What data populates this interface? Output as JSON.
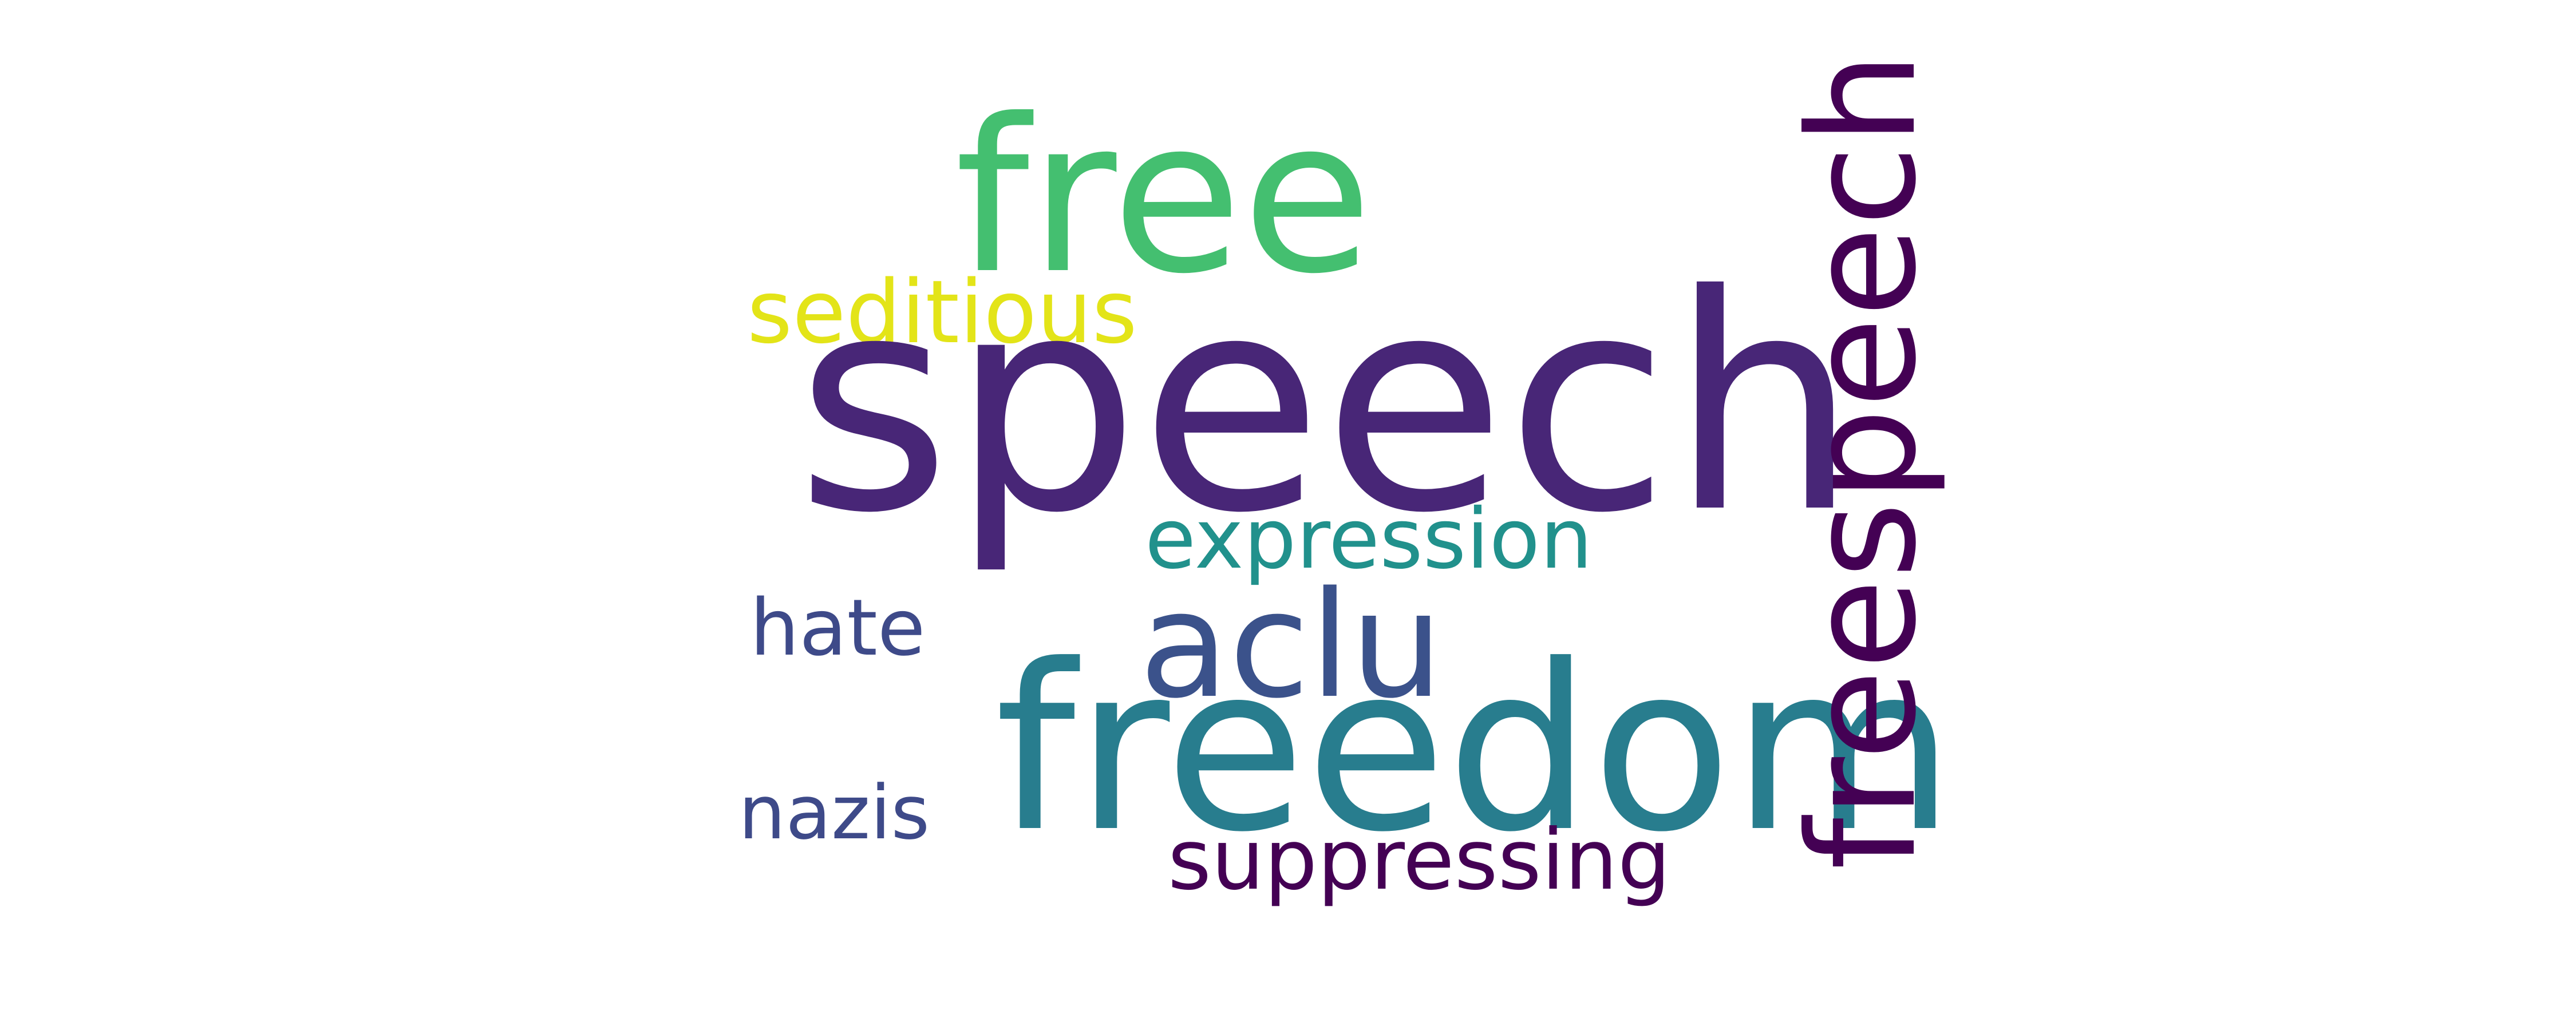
{
  "cloud": {
    "background": "#ffffff",
    "words": {
      "speech": {
        "text": "speech",
        "color": "#482677"
      },
      "free": {
        "text": "free",
        "color": "#44bf70"
      },
      "freedom": {
        "text": "freedom",
        "color": "#287d8e"
      },
      "freespeech": {
        "text": "freespeech",
        "color": "#440154",
        "orientation": "vertical"
      },
      "aclu": {
        "text": "aclu",
        "color": "#3b528b"
      },
      "seditious": {
        "text": "seditious",
        "color": "#e3e418"
      },
      "expression": {
        "text": "expression",
        "color": "#21918c"
      },
      "suppressing": {
        "text": "suppressing",
        "color": "#440154"
      },
      "hate": {
        "text": "hate",
        "color": "#3e4a89"
      },
      "nazis": {
        "text": "nazis",
        "color": "#3e4a89"
      }
    }
  }
}
